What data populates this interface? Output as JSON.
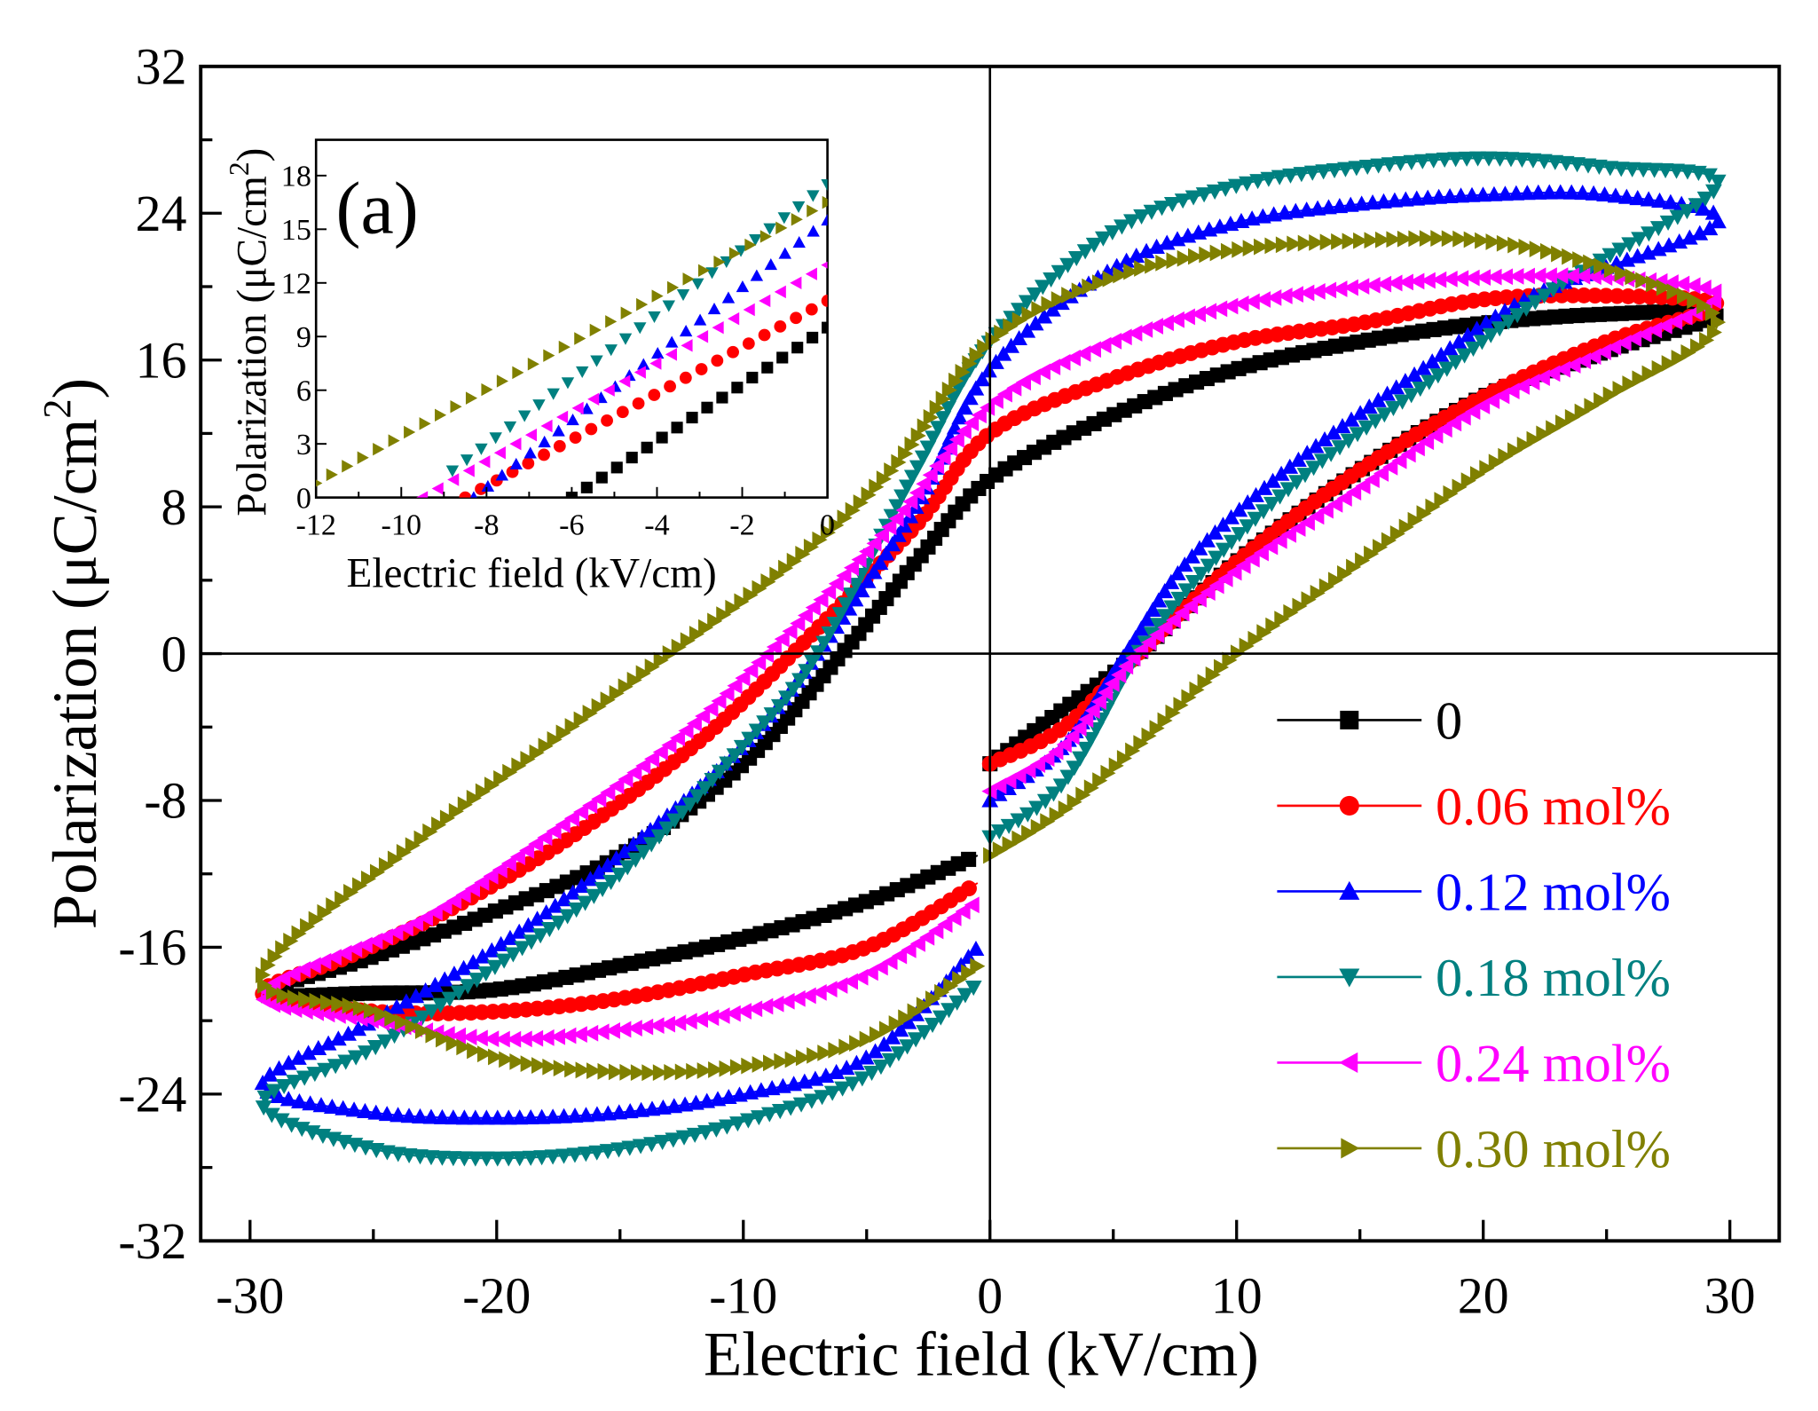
{
  "chart_data": {
    "type": "scatter",
    "xlabel": "Electric field (kV/cm)",
    "ylabel_main": "Polarization (μC/cm",
    "ylabel_sup": "2",
    "ylabel_end": ")",
    "xlim": [
      -32,
      32
    ],
    "ylim": [
      -32,
      32
    ],
    "xticks": [
      -30,
      -20,
      -10,
      0,
      10,
      20,
      30
    ],
    "yticks": [
      -32,
      -24,
      -16,
      -8,
      0,
      8,
      16,
      24,
      32
    ],
    "grid": false,
    "legend_position": "bottom-right",
    "series": [
      {
        "name": "0",
        "color": "#000000",
        "marker": "square",
        "points": [
          [
            0,
            -6
          ],
          [
            3,
            -3
          ],
          [
            6,
            0
          ],
          [
            10,
            5
          ],
          [
            15,
            10
          ],
          [
            20,
            14
          ],
          [
            25,
            16.5
          ],
          [
            29.5,
            18.5
          ],
          [
            25,
            18.5
          ],
          [
            20,
            18
          ],
          [
            15,
            17
          ],
          [
            10,
            15.5
          ],
          [
            5,
            13
          ],
          [
            0,
            9.5
          ],
          [
            -3,
            5
          ],
          [
            -6,
            0
          ],
          [
            -10,
            -6
          ],
          [
            -15,
            -11
          ],
          [
            -20,
            -14
          ],
          [
            -25,
            -16.5
          ],
          [
            -29.5,
            -18.5
          ],
          [
            -25,
            -18.5
          ],
          [
            -20,
            -18.3
          ],
          [
            -15,
            -17
          ],
          [
            -10,
            -15.5
          ],
          [
            -5,
            -13.5
          ],
          [
            -0.5,
            -11
          ]
        ]
      },
      {
        "name": "0.06 mol%",
        "color": "#ff0000",
        "marker": "circle",
        "points": [
          [
            0,
            -6
          ],
          [
            3,
            -4
          ],
          [
            6,
            0
          ],
          [
            10,
            5
          ],
          [
            15,
            10
          ],
          [
            20,
            14
          ],
          [
            25,
            17
          ],
          [
            29.5,
            19
          ],
          [
            25,
            19.5
          ],
          [
            20,
            19.3
          ],
          [
            15,
            18
          ],
          [
            10,
            17
          ],
          [
            5,
            15
          ],
          [
            0,
            12
          ],
          [
            -3,
            7
          ],
          [
            -8,
            0
          ],
          [
            -12,
            -5
          ],
          [
            -17,
            -10
          ],
          [
            -22,
            -14
          ],
          [
            -26,
            -16.5
          ],
          [
            -29.5,
            -18.5
          ],
          [
            -25,
            -19.5
          ],
          [
            -20,
            -19.5
          ],
          [
            -15,
            -18.8
          ],
          [
            -10,
            -17.5
          ],
          [
            -5,
            -16
          ],
          [
            -0.5,
            -12.5
          ]
        ]
      },
      {
        "name": "0.12 mol%",
        "color": "#0000ff",
        "marker": "triangle-up",
        "points": [
          [
            0,
            -8
          ],
          [
            3,
            -5
          ],
          [
            5.5,
            0
          ],
          [
            8,
            5
          ],
          [
            12,
            10
          ],
          [
            17,
            15
          ],
          [
            22,
            19.5
          ],
          [
            29.5,
            23.5
          ],
          [
            25,
            25
          ],
          [
            20,
            25
          ],
          [
            15,
            24.5
          ],
          [
            10,
            23.5
          ],
          [
            5,
            21
          ],
          [
            0,
            15.5
          ],
          [
            -3,
            8
          ],
          [
            -7,
            0
          ],
          [
            -10,
            -5
          ],
          [
            -15,
            -11
          ],
          [
            -20,
            -16
          ],
          [
            -25,
            -20
          ],
          [
            -29.5,
            -23.5
          ],
          [
            -25,
            -25
          ],
          [
            -20,
            -25.3
          ],
          [
            -15,
            -25
          ],
          [
            -10,
            -24
          ],
          [
            -5,
            -22
          ],
          [
            -0.5,
            -16
          ]
        ]
      },
      {
        "name": "0.18 mol%",
        "color": "#008080",
        "marker": "triangle-down",
        "points": [
          [
            0,
            -10
          ],
          [
            3,
            -7
          ],
          [
            6,
            0
          ],
          [
            9,
            5
          ],
          [
            13,
            10
          ],
          [
            18,
            15
          ],
          [
            23,
            20
          ],
          [
            29.5,
            25.5
          ],
          [
            25,
            26.5
          ],
          [
            20,
            27
          ],
          [
            15,
            26.5
          ],
          [
            10,
            25.5
          ],
          [
            5,
            23
          ],
          [
            0,
            17
          ],
          [
            -3,
            10
          ],
          [
            -7,
            0
          ],
          [
            -10,
            -5
          ],
          [
            -15,
            -12
          ],
          [
            -20,
            -17
          ],
          [
            -25,
            -21.5
          ],
          [
            -29.5,
            -24.5
          ],
          [
            -25,
            -27
          ],
          [
            -20,
            -27.5
          ],
          [
            -15,
            -27
          ],
          [
            -10,
            -25.5
          ],
          [
            -5,
            -23
          ],
          [
            -0.5,
            -18
          ]
        ]
      },
      {
        "name": "0.24 mol%",
        "color": "#ff00ff",
        "marker": "triangle-left",
        "points": [
          [
            0,
            -7.5
          ],
          [
            3,
            -5
          ],
          [
            6,
            0
          ],
          [
            10,
            4.5
          ],
          [
            15,
            9
          ],
          [
            20,
            13.5
          ],
          [
            25,
            16.5
          ],
          [
            29.5,
            19.5
          ],
          [
            25,
            20.5
          ],
          [
            20,
            20.5
          ],
          [
            15,
            20
          ],
          [
            10,
            19
          ],
          [
            5,
            17
          ],
          [
            0,
            13.5
          ],
          [
            -4,
            7
          ],
          [
            -9,
            0
          ],
          [
            -13,
            -5
          ],
          [
            -18,
            -10
          ],
          [
            -23,
            -14.5
          ],
          [
            -29.5,
            -18.5
          ],
          [
            -25,
            -20
          ],
          [
            -20,
            -21
          ],
          [
            -15,
            -20.5
          ],
          [
            -10,
            -19.5
          ],
          [
            -5,
            -17.5
          ],
          [
            -0.5,
            -13.5
          ]
        ]
      },
      {
        "name": "0.30 mol%",
        "color": "#808000",
        "marker": "triangle-right",
        "points": [
          [
            0,
            -11
          ],
          [
            3,
            -8.5
          ],
          [
            6,
            -5
          ],
          [
            10,
            0
          ],
          [
            15,
            5
          ],
          [
            20,
            10
          ],
          [
            25,
            14
          ],
          [
            29.5,
            18
          ],
          [
            25,
            21
          ],
          [
            20,
            22.5
          ],
          [
            15,
            22.5
          ],
          [
            10,
            22
          ],
          [
            5,
            20.5
          ],
          [
            0,
            17
          ],
          [
            -4,
            10
          ],
          [
            -8,
            5
          ],
          [
            -13,
            0
          ],
          [
            -18,
            -5
          ],
          [
            -23,
            -10
          ],
          [
            -29.5,
            -17.5
          ],
          [
            -25,
            -19.5
          ],
          [
            -20,
            -22
          ],
          [
            -15,
            -22.8
          ],
          [
            -10,
            -22.5
          ],
          [
            -5,
            -21
          ],
          [
            -0.5,
            -17
          ]
        ]
      }
    ],
    "inset": {
      "panel_label": "(a)",
      "xlabel": "Electric field (kV/cm)",
      "ylabel_main": "Polarization (μC/cm",
      "ylabel_sup": "2",
      "ylabel_end": ")",
      "xlim": [
        -12,
        0
      ],
      "ylim": [
        0,
        20
      ],
      "xticks": [
        -12,
        -10,
        -8,
        -6,
        -4,
        -2,
        0
      ],
      "yticks": [
        0,
        3,
        6,
        9,
        12,
        15,
        18
      ],
      "series": [
        {
          "name": "0",
          "points": [
            [
              -6,
              0
            ],
            [
              0,
              9.5
            ]
          ]
        },
        {
          "name": "0.06 mol%",
          "points": [
            [
              -8.5,
              0
            ],
            [
              0,
              11
            ]
          ]
        },
        {
          "name": "0.12 mol%",
          "points": [
            [
              -8.3,
              0
            ],
            [
              0,
              15.5
            ]
          ]
        },
        {
          "name": "0.18 mol%",
          "points": [
            [
              -8.8,
              1.5
            ],
            [
              0,
              17.5
            ]
          ]
        },
        {
          "name": "0.24 mol%",
          "points": [
            [
              -9.5,
              0
            ],
            [
              0,
              13
            ]
          ]
        },
        {
          "name": "0.30 mol%",
          "points": [
            [
              -12,
              0.8
            ],
            [
              0,
              16.5
            ]
          ]
        }
      ]
    }
  }
}
